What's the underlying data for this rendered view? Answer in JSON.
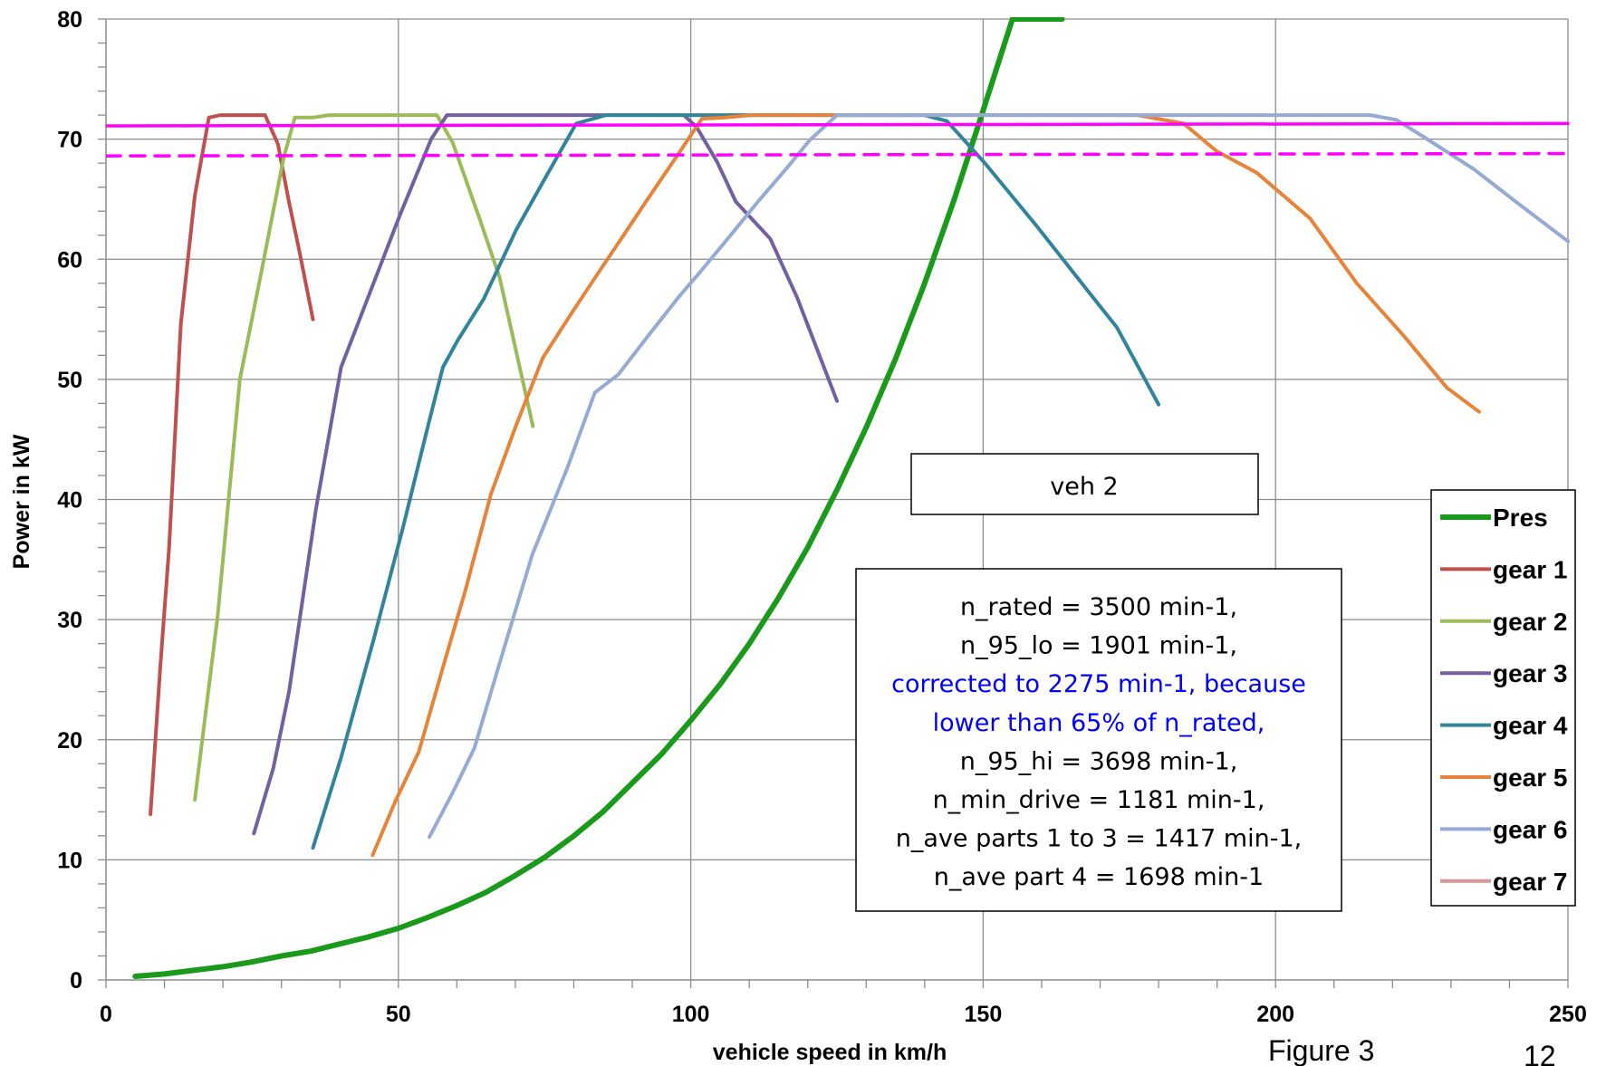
{
  "chart_data": {
    "type": "line",
    "xlabel": "vehicle speed in km/h",
    "ylabel": "Power in kW",
    "xlim": [
      0,
      250
    ],
    "ylim": [
      0,
      80
    ],
    "x_ticks": [
      0,
      50,
      100,
      150,
      200,
      250
    ],
    "y_ticks": [
      0,
      10,
      20,
      30,
      40,
      50,
      60,
      70,
      80
    ],
    "grid": true,
    "legend_position": "right",
    "series": [
      {
        "name": "Pres",
        "color": "#1a9a1a",
        "width": 6,
        "x": [
          5,
          10,
          15,
          20,
          25,
          30,
          35,
          40,
          45,
          50,
          55,
          60,
          65,
          70,
          75,
          80,
          85,
          90,
          95,
          100,
          105,
          110,
          115,
          120,
          125,
          130,
          135,
          140,
          145,
          150,
          155,
          160,
          163.5
        ],
        "y": [
          0.3,
          0.5,
          0.8,
          1.1,
          1.5,
          2.0,
          2.4,
          3.0,
          3.6,
          4.3,
          5.2,
          6.2,
          7.3,
          8.7,
          10.2,
          12.0,
          14.0,
          16.4,
          18.8,
          21.6,
          24.6,
          28.0,
          31.8,
          36.0,
          40.8,
          46.0,
          51.7,
          58.0,
          64.9,
          72.4,
          80.0,
          80.0,
          80.0
        ]
      },
      {
        "name": "gear 1",
        "color": "#c0504d",
        "width": 4,
        "x": [
          7.6,
          9.3,
          10.8,
          12.8,
          15.2,
          17.6,
          19.6,
          22.5,
          25.3,
          27.2,
          29.4,
          31.2,
          33.1,
          35.4
        ],
        "y": [
          13.8,
          26.1,
          36.0,
          54.6,
          65.3,
          71.8,
          72.0,
          72.0,
          72.0,
          72.0,
          69.6,
          65.0,
          60.6,
          55.0
        ]
      },
      {
        "name": "gear 2",
        "color": "#9bbb59",
        "width": 4,
        "x": [
          15.2,
          19.1,
          22.9,
          26.6,
          30.4,
          32.3,
          35.4,
          38.1,
          45.6,
          55.3,
          56.6,
          59.3,
          63.8,
          67.3,
          73.0
        ],
        "y": [
          15.0,
          30.3,
          50.0,
          59.0,
          68.5,
          71.8,
          71.8,
          72.0,
          72.0,
          72.0,
          72.0,
          69.7,
          63.5,
          58.5,
          46.1
        ]
      },
      {
        "name": "gear 3",
        "color": "#7360a0",
        "width": 4,
        "x": [
          25.3,
          28.6,
          31.3,
          35.9,
          40.2,
          44.8,
          50.2,
          55.6,
          58.3,
          62.7,
          68.1,
          76.4,
          90.4,
          98.8,
          101.0,
          104.5,
          107.7,
          113.6,
          118.2,
          125.0
        ],
        "y": [
          12.2,
          17.6,
          24.0,
          39.2,
          51.0,
          56.8,
          63.6,
          70.0,
          72.0,
          72.0,
          72.0,
          72.0,
          72.0,
          72.0,
          71.0,
          68.1,
          64.8,
          61.7,
          56.8,
          48.2
        ]
      },
      {
        "name": "gear 4",
        "color": "#31849b",
        "width": 4,
        "x": [
          35.4,
          40.2,
          45.8,
          50.8,
          55.0,
          57.6,
          60.2,
          64.6,
          70.2,
          75.5,
          80.4,
          85.5,
          96.5,
          101.6,
          110.1,
          139.9,
          143.8,
          150.3,
          159.1,
          168.5,
          172.9,
          180.0
        ],
        "y": [
          11.0,
          18.5,
          28.4,
          37.7,
          46.0,
          51.0,
          53.3,
          56.7,
          62.5,
          67.1,
          71.3,
          72.0,
          72.0,
          72.0,
          72.0,
          72.0,
          71.5,
          68.0,
          62.8,
          57.0,
          54.3,
          47.9
        ]
      },
      {
        "name": "gear 5",
        "color": "#e8833a",
        "width": 4,
        "x": [
          45.6,
          49.5,
          53.5,
          57.6,
          61.5,
          65.8,
          70.0,
          74.7,
          79.6,
          84.1,
          88.5,
          92.9,
          97.5,
          101.9,
          105.9,
          110.2,
          130.6,
          165.9,
          176.4,
          184.3,
          189.9,
          196.8,
          205.9,
          213.9,
          221.8,
          229.3,
          234.8
        ],
        "y": [
          10.4,
          14.9,
          19.0,
          26.0,
          32.5,
          40.4,
          46.0,
          51.8,
          55.5,
          58.8,
          62.0,
          65.2,
          68.5,
          71.7,
          71.8,
          72.0,
          72.0,
          72.0,
          72.0,
          71.3,
          69.0,
          67.2,
          63.4,
          58.0,
          53.7,
          49.3,
          47.3
        ]
      },
      {
        "name": "gear 6",
        "color": "#95abd5",
        "width": 4,
        "x": [
          55.3,
          59.3,
          63.0,
          68.0,
          72.9,
          78.8,
          83.6,
          87.6,
          92.5,
          98.0,
          101.7,
          106.3,
          111.5,
          116.1,
          120.3,
          125.0,
          174.4,
          189.6,
          203.2,
          216.2,
          220.7,
          225.3,
          233.9,
          242.4,
          250
        ],
        "y": [
          11.9,
          15.6,
          19.3,
          27.5,
          35.4,
          42.5,
          48.9,
          50.4,
          53.5,
          56.9,
          59.0,
          61.7,
          64.8,
          67.4,
          69.9,
          72.0,
          72.0,
          72.0,
          72.0,
          72.0,
          71.6,
          70.2,
          67.5,
          64.3,
          61.5
        ]
      },
      {
        "name": "gear 7",
        "color": "#d99694",
        "width": 4,
        "x": [],
        "y": []
      },
      {
        "name": "",
        "color": "#ff00ff",
        "width": 3.5,
        "dash": "none",
        "x": [
          0,
          250
        ],
        "y": [
          71.1,
          71.3
        ]
      },
      {
        "name": "",
        "color": "#ff00ff",
        "width": 3.5,
        "dash": "dashed",
        "x": [
          0,
          250
        ],
        "y": [
          68.6,
          68.8
        ]
      }
    ]
  },
  "labels": {
    "veh_box": "veh 2",
    "figure": "Figure 3",
    "page_number": "12"
  },
  "info_box": {
    "lines": [
      {
        "text": "n_rated = 3500 min-1,",
        "color": "#000000"
      },
      {
        "text": "n_95_lo = 1901 min-1,",
        "color": "#000000"
      },
      {
        "text": "corrected to 2275 min-1, because",
        "color": "#0000ff"
      },
      {
        "text": "lower than 65% of n_rated,",
        "color": "#0000ff"
      },
      {
        "text": "n_95_hi = 3698 min-1,",
        "color": "#000000"
      },
      {
        "text": "n_min_drive  = 1181 min-1,",
        "color": "#000000"
      },
      {
        "text": "n_ave parts 1 to 3 = 1417 min-1,",
        "color": "#000000"
      },
      {
        "text": "n_ave part 4 = 1698 min-1",
        "color": "#000000"
      }
    ]
  }
}
